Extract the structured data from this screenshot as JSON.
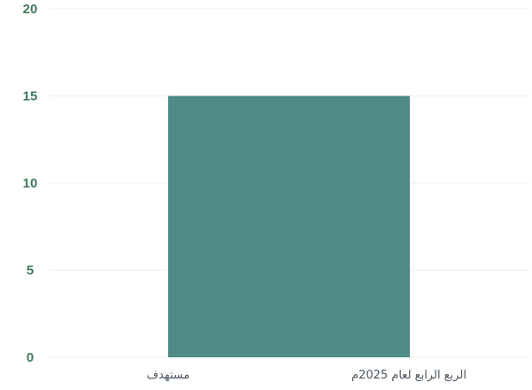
{
  "chart_data": {
    "type": "bar",
    "categories": [
      "مستهدف"
    ],
    "values": [
      15
    ],
    "ylim": [
      0,
      20
    ],
    "yticks": [
      0,
      5,
      10,
      15,
      20
    ],
    "grid": true,
    "legend_label": "الربع الرابع لعام 2025م",
    "title": "",
    "xlabel": "",
    "ylabel": ""
  },
  "colors": {
    "bar": "#4e8a86",
    "tick_text": "#3f7a5c",
    "category_text": "#4a5560",
    "legend_text": "#4a5560",
    "grid": "#eeeeee"
  }
}
